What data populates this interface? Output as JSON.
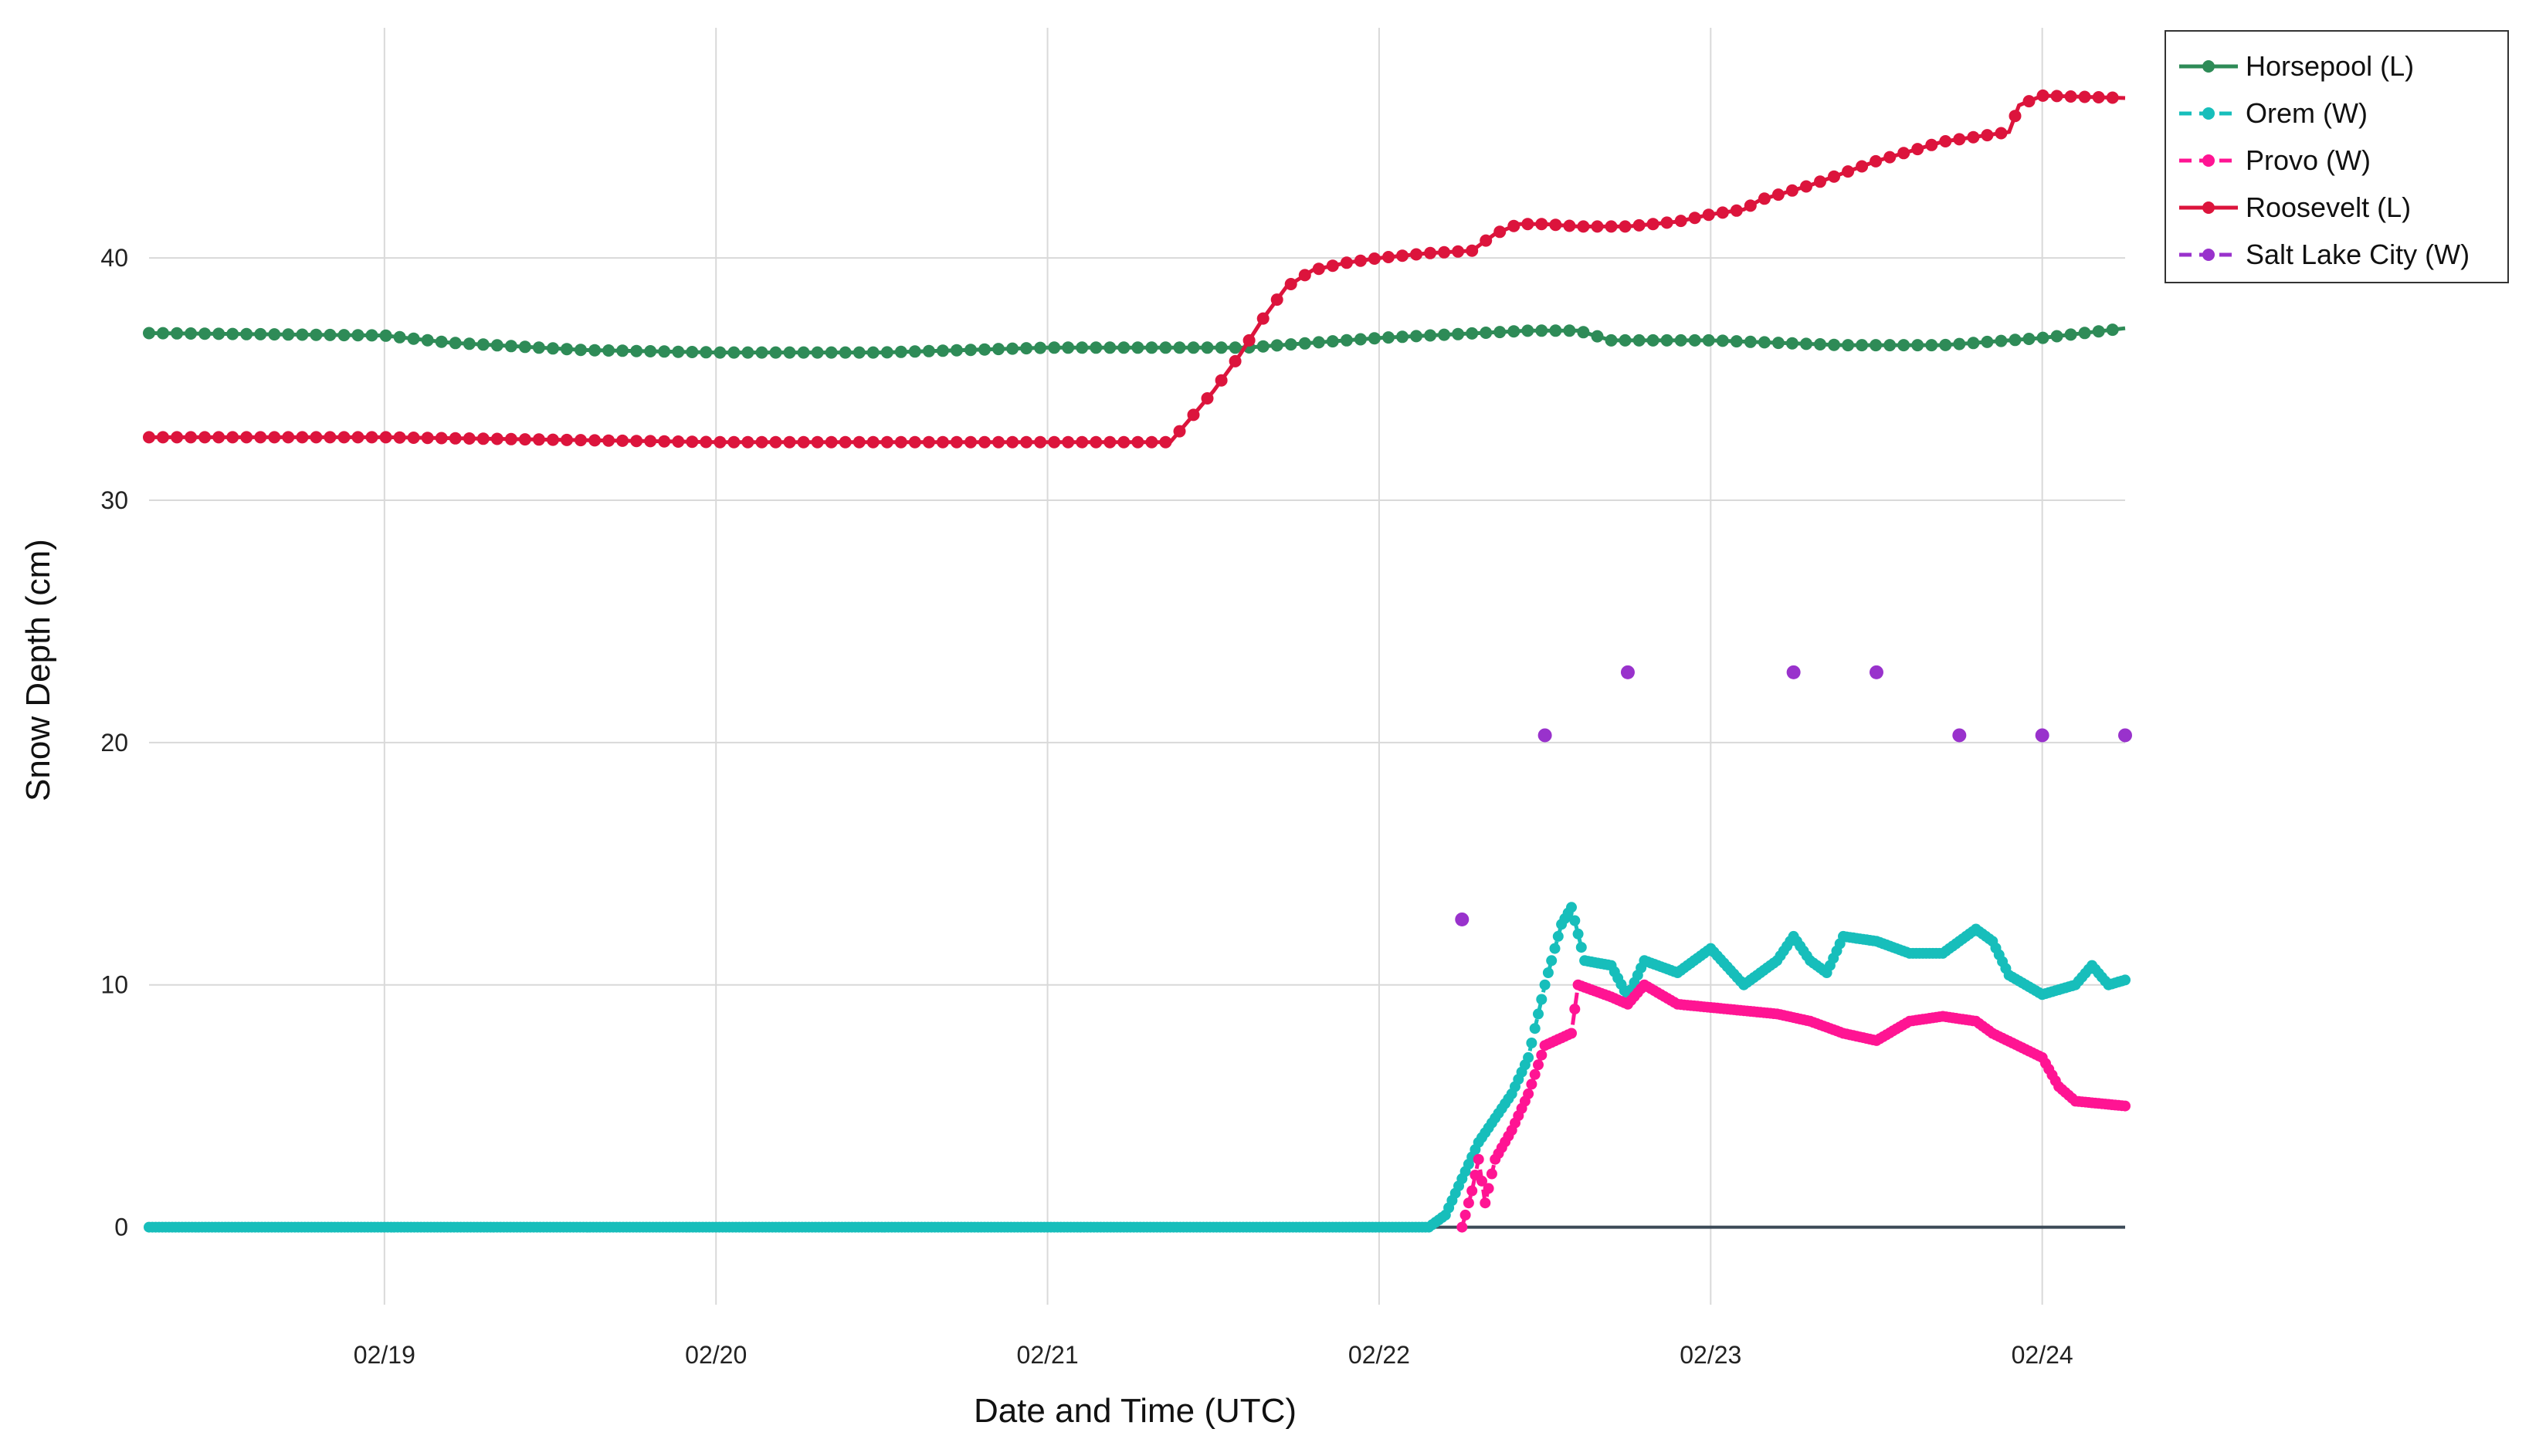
{
  "chart_data": {
    "type": "line",
    "title": "",
    "xlabel": "Date and Time (UTC)",
    "ylabel": "Snow Depth (cm)",
    "x_unit": "days since 02/18 00:00 UTC",
    "xlim": [
      0.29,
      6.25
    ],
    "ylim": [
      -3.2,
      49.5
    ],
    "x_ticks": [
      {
        "x": 1,
        "label": "02/19"
      },
      {
        "x": 2,
        "label": "02/20"
      },
      {
        "x": 3,
        "label": "02/21"
      },
      {
        "x": 4,
        "label": "02/22"
      },
      {
        "x": 5,
        "label": "02/23"
      },
      {
        "x": 6,
        "label": "02/24"
      }
    ],
    "y_ticks": [
      {
        "y": 0,
        "label": "0"
      },
      {
        "y": 10,
        "label": "10"
      },
      {
        "y": 20,
        "label": "20"
      },
      {
        "y": 30,
        "label": "30"
      },
      {
        "y": 40,
        "label": "40"
      }
    ],
    "grid": true,
    "zero_line": true,
    "legend_position": "top-right, outside plot",
    "series": [
      {
        "name": "Horsepool (L)",
        "color": "#2e8b57",
        "dash": "solid",
        "marker_step": 0.042,
        "points": [
          [
            0.29,
            36.9
          ],
          [
            1,
            36.8
          ],
          [
            1.2,
            36.5
          ],
          [
            1.6,
            36.2
          ],
          [
            2,
            36.1
          ],
          [
            2.5,
            36.1
          ],
          [
            3,
            36.3
          ],
          [
            3.4,
            36.3
          ],
          [
            3.6,
            36.3
          ],
          [
            3.8,
            36.5
          ],
          [
            4,
            36.7
          ],
          [
            4.3,
            36.9
          ],
          [
            4.45,
            37.0
          ],
          [
            4.6,
            37.0
          ],
          [
            4.7,
            36.6
          ],
          [
            5,
            36.6
          ],
          [
            5.2,
            36.5
          ],
          [
            5.4,
            36.4
          ],
          [
            5.7,
            36.4
          ],
          [
            6,
            36.7
          ],
          [
            6.25,
            37.1
          ]
        ]
      },
      {
        "name": "Orem (W)",
        "color": "#17bebb",
        "dash": "dash",
        "marker_step": 0.01,
        "points": [
          [
            0.29,
            0
          ],
          [
            4.15,
            0
          ],
          [
            4.2,
            0.5
          ],
          [
            4.25,
            2
          ],
          [
            4.3,
            3.5
          ],
          [
            4.35,
            4.5
          ],
          [
            4.4,
            5.5
          ],
          [
            4.45,
            7
          ],
          [
            4.5,
            10
          ],
          [
            4.55,
            12.5
          ],
          [
            4.58,
            13.2
          ],
          [
            4.62,
            11
          ],
          [
            4.7,
            10.8
          ],
          [
            4.75,
            9.5
          ],
          [
            4.8,
            11
          ],
          [
            4.9,
            10.5
          ],
          [
            5,
            11.5
          ],
          [
            5.1,
            10
          ],
          [
            5.15,
            10.5
          ],
          [
            5.2,
            11
          ],
          [
            5.25,
            12
          ],
          [
            5.3,
            11
          ],
          [
            5.35,
            10.5
          ],
          [
            5.4,
            12
          ],
          [
            5.5,
            11.8
          ],
          [
            5.6,
            11.3
          ],
          [
            5.7,
            11.3
          ],
          [
            5.8,
            12.3
          ],
          [
            5.85,
            11.8
          ],
          [
            5.9,
            10.4
          ],
          [
            6,
            9.6
          ],
          [
            6.1,
            10
          ],
          [
            6.15,
            10.8
          ],
          [
            6.2,
            10
          ],
          [
            6.25,
            10.2
          ]
        ]
      },
      {
        "name": "Provo (W)",
        "color": "#ff1493",
        "dash": "dash",
        "marker_step": 0.01,
        "points": [
          [
            4.25,
            0
          ],
          [
            4.28,
            1.5
          ],
          [
            4.3,
            2.8
          ],
          [
            4.32,
            1
          ],
          [
            4.35,
            2.8
          ],
          [
            4.4,
            4
          ],
          [
            4.45,
            5.5
          ],
          [
            4.5,
            7.5
          ],
          [
            4.58,
            8
          ],
          [
            4.6,
            10
          ],
          [
            4.7,
            9.5
          ],
          [
            4.75,
            9.2
          ],
          [
            4.8,
            10
          ],
          [
            4.9,
            9.2
          ],
          [
            5.2,
            8.8
          ],
          [
            5.3,
            8.5
          ],
          [
            5.4,
            8
          ],
          [
            5.5,
            7.7
          ],
          [
            5.6,
            8.5
          ],
          [
            5.7,
            8.7
          ],
          [
            5.8,
            8.5
          ],
          [
            5.85,
            8
          ],
          [
            6,
            7
          ],
          [
            6.05,
            5.8
          ],
          [
            6.1,
            5.2
          ],
          [
            6.25,
            5.0
          ]
        ]
      },
      {
        "name": "Roosevelt (L)",
        "color": "#dc143c",
        "dash": "solid",
        "marker_step": 0.042,
        "points": [
          [
            0.29,
            32.6
          ],
          [
            1,
            32.6
          ],
          [
            1.5,
            32.5
          ],
          [
            2,
            32.4
          ],
          [
            2.5,
            32.4
          ],
          [
            3,
            32.4
          ],
          [
            3.37,
            32.4
          ],
          [
            3.42,
            33.2
          ],
          [
            3.5,
            34.5
          ],
          [
            3.58,
            36
          ],
          [
            3.65,
            37.5
          ],
          [
            3.72,
            38.8
          ],
          [
            3.8,
            39.5
          ],
          [
            3.9,
            39.8
          ],
          [
            4,
            40.0
          ],
          [
            4.15,
            40.2
          ],
          [
            4.28,
            40.3
          ],
          [
            4.35,
            41.0
          ],
          [
            4.42,
            41.4
          ],
          [
            4.5,
            41.4
          ],
          [
            4.6,
            41.3
          ],
          [
            4.75,
            41.3
          ],
          [
            4.9,
            41.5
          ],
          [
            5,
            41.8
          ],
          [
            5.1,
            42.0
          ],
          [
            5.15,
            42.4
          ],
          [
            5.2,
            42.6
          ],
          [
            5.3,
            43.0
          ],
          [
            5.4,
            43.5
          ],
          [
            5.5,
            44.0
          ],
          [
            5.6,
            44.4
          ],
          [
            5.7,
            44.8
          ],
          [
            5.8,
            45.0
          ],
          [
            5.9,
            45.2
          ],
          [
            5.93,
            46.3
          ],
          [
            6,
            46.7
          ],
          [
            6.25,
            46.6
          ]
        ]
      },
      {
        "name": "Salt Lake City (W)",
        "color": "#9932cc",
        "dash": "dash",
        "marker_step": 0,
        "points": [
          [
            4.25,
            12.7
          ],
          [
            4.5,
            20.3
          ],
          [
            4.75,
            22.9
          ],
          [
            5.25,
            22.9
          ],
          [
            5.5,
            22.9
          ],
          [
            5.75,
            20.3
          ],
          [
            6,
            20.3
          ],
          [
            6.25,
            20.3
          ]
        ]
      }
    ]
  }
}
